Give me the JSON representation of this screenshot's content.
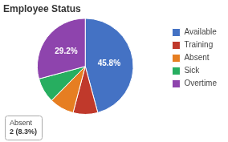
{
  "chart_data": {
    "type": "pie",
    "title": "Employee Status",
    "categories": [
      "Available",
      "Training",
      "Absent",
      "Sick",
      "Overtime"
    ],
    "values": [
      45.8,
      8.3,
      8.3,
      8.4,
      29.2
    ],
    "value_labels": [
      "45.8%",
      null,
      null,
      null,
      "29.2%"
    ],
    "data_labels": true,
    "colors": [
      "#4472C4",
      "#C0392B",
      "#E67E22",
      "#27AE60",
      "#8E44AD"
    ],
    "legend": "right",
    "annotations": [
      "Absent",
      "2 (8.3%)"
    ]
  }
}
